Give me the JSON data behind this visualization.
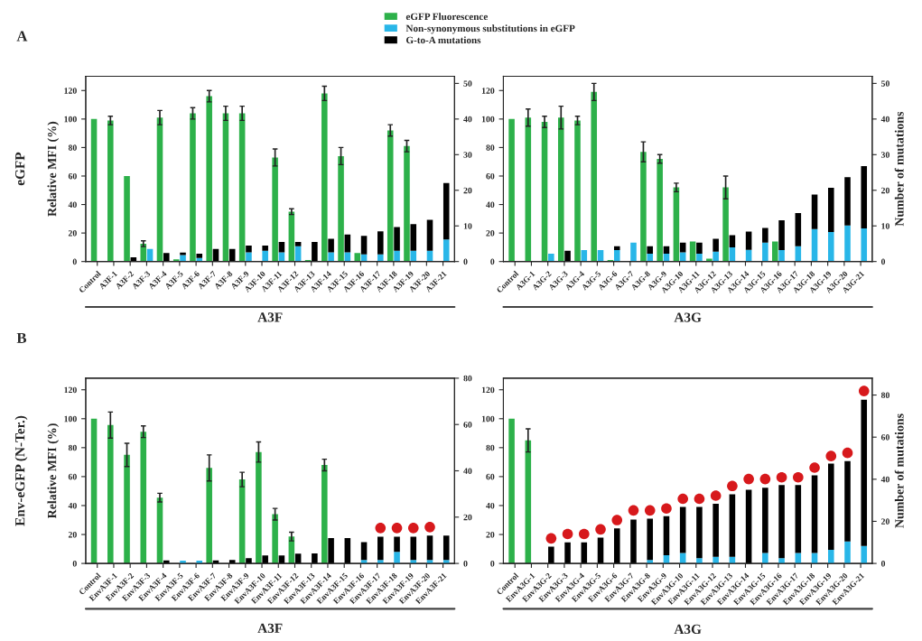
{
  "chart_data": [
    {
      "type": "bar",
      "stacked": true,
      "legend": "top",
      "ylabel": "Relative MFI (%)",
      "xlabel": "A3F",
      "annotations": [
        "A",
        "eGFP"
      ],
      "categories": [
        "Control",
        "A3F-1",
        "A3F-2",
        "A3F-3",
        "A3F-4",
        "A3F-5",
        "A3F-6",
        "A3F-7",
        "A3F-8",
        "A3F-9",
        "A3F-10",
        "A3F-11",
        "A3F-12",
        "A3F-13",
        "A3F-14",
        "A3F-15",
        "A3F-16",
        "A3F-17",
        "A3F-18",
        "A3F-19",
        "A3F-20",
        "A3F-21"
      ],
      "ylim": [
        0,
        130
      ],
      "yticks": [
        0,
        20,
        40,
        60,
        80,
        100,
        120
      ],
      "y2lim": [
        0,
        52
      ],
      "y2ticks": [
        0,
        10,
        20,
        30,
        40,
        50
      ],
      "series": [
        {
          "name": "eGFP Fluorescence",
          "color": "#2db14a",
          "values": [
            100,
            99,
            60,
            12.5,
            101,
            1.5,
            104,
            116,
            104,
            104,
            null,
            73,
            35,
            1,
            118,
            74,
            6,
            null,
            92,
            81,
            null,
            null
          ],
          "errors": [
            null,
            3,
            null,
            2,
            5,
            null,
            4,
            4,
            5,
            5,
            null,
            6,
            2,
            null,
            5,
            6,
            null,
            null,
            4,
            4,
            null,
            null
          ]
        },
        {
          "name": "Non-synonymous substitutions in eGFP",
          "color": "#29b6e8",
          "axis": "y2",
          "values": [
            null,
            null,
            null,
            3.5,
            null,
            1.8,
            1,
            null,
            null,
            2.6,
            3,
            2.6,
            4.3,
            null,
            2.6,
            2.6,
            2,
            2,
            3,
            3,
            3,
            6.2
          ]
        },
        {
          "name": "G-to-A mutations",
          "color": "#000000",
          "axis": "y2",
          "values": [
            null,
            null,
            1.2,
            null,
            2.4,
            0.7,
            1.2,
            3.5,
            3.5,
            1.9,
            1.5,
            2.9,
            1.2,
            5.5,
            3.8,
            5.0,
            5.2,
            6.5,
            6.7,
            7.5,
            8.7,
            15.8
          ]
        }
      ]
    },
    {
      "type": "bar",
      "stacked": true,
      "xlabel": "A3G",
      "y2label": "Number of mutations",
      "categories": [
        "Control",
        "A3G-1",
        "A3G-2",
        "A3G-3",
        "A3G-4",
        "A3G-5",
        "A3G-6",
        "A3G-7",
        "A3G-8",
        "A3G-9",
        "A3G-10",
        "A3G-11",
        "A3G-12",
        "A3G-13",
        "A3G-14",
        "A3G-15",
        "A3G-16",
        "A3G-17",
        "A3G-18",
        "A3G-19",
        "A3G-20",
        "A3G-21"
      ],
      "ylim": [
        0,
        130
      ],
      "yticks": [
        0,
        20,
        40,
        60,
        80,
        100,
        120
      ],
      "y2lim": [
        0,
        52
      ],
      "y2ticks": [
        0,
        10,
        20,
        30,
        40,
        50
      ],
      "series": [
        {
          "color": "#2db14a",
          "values": [
            100,
            101,
            98,
            101,
            99,
            119,
            1,
            null,
            77,
            72,
            52,
            14,
            2,
            52,
            null,
            null,
            14,
            0.5,
            null,
            null,
            null,
            null
          ],
          "errors": [
            null,
            6,
            4,
            8,
            3,
            6,
            null,
            null,
            7,
            3,
            3,
            null,
            null,
            8,
            null,
            null,
            null,
            null,
            null,
            null,
            null,
            null
          ]
        },
        {
          "color": "#29b6e8",
          "axis": "y2",
          "values": [
            null,
            null,
            2.2,
            null,
            3.2,
            3.2,
            3.2,
            5.3,
            2.2,
            2.2,
            2.6,
            2.2,
            2.8,
            4,
            3.3,
            5.3,
            3.2,
            4.3,
            9.1,
            8.3,
            10.1,
            9.3
          ]
        },
        {
          "color": "#000000",
          "axis": "y2",
          "values": [
            null,
            null,
            null,
            3,
            null,
            null,
            1.1,
            null,
            2.1,
            2.1,
            2.7,
            3.1,
            3.6,
            3.4,
            5.1,
            4.1,
            8.4,
            9.3,
            9.7,
            12.4,
            13.6,
            17.5
          ]
        }
      ]
    },
    {
      "type": "bar",
      "stacked": true,
      "ylabel": "Relative MFI (%)",
      "xlabel": "A3F",
      "annotations": [
        "B",
        "Env-eGFP (N-Ter.)"
      ],
      "categories": [
        "Control",
        "EnvA3F-1",
        "EnvA3F-2",
        "EnvA3F-3",
        "EnvA3F-4",
        "EnvA3F-5",
        "EnvA3F-6",
        "EnvA3F-7",
        "EnvA3F-8",
        "EnvA3F-9",
        "EnvA3F-10",
        "EnvA3F-11",
        "EnvA3F-12",
        "EnvA3F-13",
        "EnvA3F-14",
        "EnvA3F-15",
        "EnvA3F-16",
        "EnvA3F-17",
        "EnvA3F-18",
        "EnvA3F-19",
        "EnvA3F-20",
        "EnvA3F-21"
      ],
      "ylim": [
        0,
        128
      ],
      "yticks": [
        0,
        20,
        40,
        60,
        80,
        100,
        120
      ],
      "y2lim": [
        0,
        80
      ],
      "y2ticks": [
        0,
        20,
        40,
        60,
        80
      ],
      "series": [
        {
          "color": "#2db14a",
          "values": [
            100,
            95.6,
            75,
            91,
            45.5,
            null,
            null,
            66,
            null,
            58,
            77,
            34,
            18.6,
            null,
            68,
            null,
            null,
            null,
            null,
            null,
            null,
            null
          ],
          "errors": [
            null,
            9,
            8,
            4,
            3,
            null,
            null,
            9,
            null,
            5,
            7,
            4,
            3,
            null,
            4,
            null,
            null,
            null,
            null,
            null,
            null,
            null
          ]
        },
        {
          "color": "#29b6e8",
          "axis": "y2",
          "values": [
            null,
            null,
            null,
            null,
            null,
            1.2,
            1.2,
            null,
            null,
            null,
            null,
            null,
            null,
            null,
            null,
            null,
            1.5,
            1.5,
            5,
            1.5,
            1.5,
            1.5
          ]
        },
        {
          "color": "#000000",
          "axis": "y2",
          "values": [
            null,
            null,
            null,
            null,
            1.3,
            null,
            null,
            1.3,
            1.5,
            2.3,
            3.4,
            3.4,
            4.2,
            4.3,
            11,
            11,
            7.7,
            10,
            6.5,
            10,
            10.5,
            10.5
          ]
        },
        {
          "type": "scatter",
          "color": "#d7191c",
          "axis": "y2",
          "marker": "circle",
          "values": [
            null,
            null,
            null,
            null,
            null,
            null,
            null,
            null,
            null,
            null,
            null,
            null,
            null,
            null,
            null,
            null,
            null,
            15.3,
            15.3,
            15.3,
            15.7,
            null
          ]
        }
      ]
    },
    {
      "type": "bar",
      "stacked": true,
      "xlabel": "A3G",
      "y2label": "Number of mutations",
      "categories": [
        "Control",
        "EnvA3G-1",
        "EnvA3G-2",
        "EnvA3G-3",
        "EnvA3G-4",
        "EnvA3G-5",
        "EnvA3G-6",
        "EnvA3G-7",
        "EnvA3G-8",
        "EnvA3G-9",
        "EnvA3G-10",
        "EnvA3G-11",
        "EnvA3G-12",
        "EnvA3G-13",
        "EnvA3G-14",
        "EnvA3G-15",
        "EnvA3G-16",
        "EnvA3G-17",
        "EnvA3G-18",
        "EnvA3G-19",
        "EnvA3G-20",
        "EnvA3G-21"
      ],
      "ylim": [
        0,
        128
      ],
      "yticks": [
        0,
        20,
        40,
        60,
        80,
        100,
        120
      ],
      "y2lim": [
        0,
        88
      ],
      "y2ticks": [
        0,
        20,
        40,
        60,
        80
      ],
      "series": [
        {
          "color": "#2db14a",
          "values": [
            100,
            85,
            null,
            null,
            null,
            null,
            null,
            null,
            null,
            null,
            null,
            null,
            null,
            null,
            null,
            null,
            null,
            null,
            null,
            null,
            null,
            null
          ],
          "errors": [
            null,
            8,
            null,
            null,
            null,
            null,
            null,
            null,
            null,
            null,
            null,
            null,
            null,
            null,
            null,
            null,
            null,
            null,
            null,
            null,
            null,
            null
          ]
        },
        {
          "color": "#29b6e8",
          "axis": "y2",
          "values": [
            null,
            null,
            null,
            null,
            null,
            null,
            null,
            null,
            1.7,
            3.9,
            5,
            2.5,
            3.2,
            3.2,
            null,
            5,
            2.5,
            5,
            5,
            6.5,
            10.4,
            8.3
          ]
        },
        {
          "color": "#000000",
          "axis": "y2",
          "values": [
            null,
            null,
            8,
            10,
            10,
            12.3,
            16.7,
            20.8,
            19.6,
            18.6,
            21.8,
            24.3,
            25.1,
            29.7,
            35,
            31,
            34.7,
            32.2,
            36.9,
            40.9,
            38.2,
            69.5
          ]
        },
        {
          "type": "scatter",
          "color": "#d7191c",
          "axis": "y2",
          "marker": "circle",
          "values": [
            null,
            null,
            11.9,
            14,
            14,
            16.2,
            20.6,
            25.2,
            25.2,
            26.1,
            30.7,
            30.7,
            32.2,
            36.8,
            40.1,
            40.1,
            40.9,
            40.9,
            45.5,
            51,
            52.5,
            81.9
          ]
        }
      ]
    }
  ]
}
